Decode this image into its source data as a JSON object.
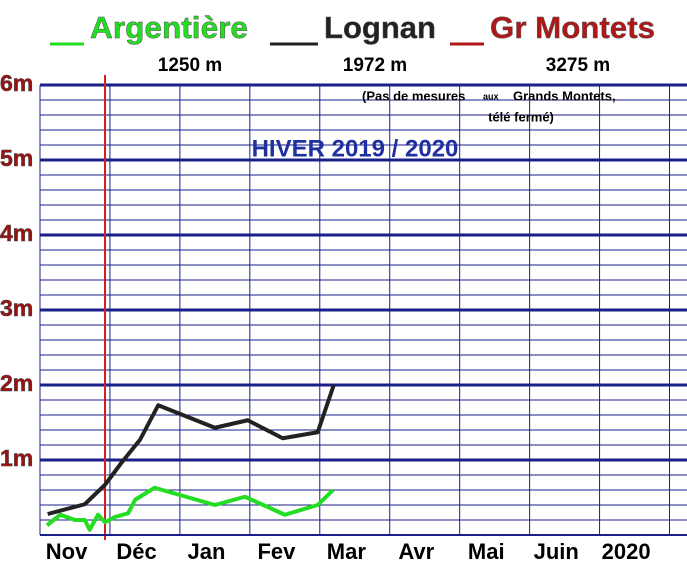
{
  "chart_data": {
    "type": "line",
    "title": "HIVER 2019 / 2020",
    "annotation": [
      "(Pas de mesures",
      "aux",
      "Grands Montets,",
      "télé fermé)"
    ],
    "categories": [
      "Nov",
      "Déc",
      "Jan",
      "Fev",
      "Mar",
      "Avr",
      "Mai",
      "Juin",
      "2020"
    ],
    "xlim": [
      0,
      9.25
    ],
    "xticks": [
      0,
      1,
      2,
      3,
      4,
      5,
      6,
      7,
      8,
      9
    ],
    "ylim": [
      0,
      6
    ],
    "yticks": [
      {
        "value": 1,
        "label": "1m"
      },
      {
        "value": 2,
        "label": "2m"
      },
      {
        "value": 3,
        "label": "3m"
      },
      {
        "value": 4,
        "label": "4m"
      },
      {
        "value": 5,
        "label": "5m"
      },
      {
        "value": 6,
        "label": "6m"
      }
    ],
    "minor_yticks": [
      0.2,
      0.4,
      0.6,
      0.8,
      1.2,
      1.4,
      1.6,
      1.8,
      2.2,
      2.4,
      2.6,
      2.8,
      3.2,
      3.4,
      3.6,
      3.8,
      4.2,
      4.4,
      4.6,
      4.8,
      5.2,
      5.4,
      5.6,
      5.8
    ],
    "grid": true,
    "series": [
      {
        "name": "Argentière",
        "altitude": "1250 m",
        "color": "#22dd22",
        "x": [
          0.1,
          0.29,
          0.5,
          0.64,
          0.71,
          0.83,
          0.93,
          1.07,
          1.26,
          1.36,
          1.64,
          1.86,
          2.5,
          2.93,
          3.5,
          3.97,
          4.19
        ],
        "values": [
          0.13,
          0.27,
          0.2,
          0.2,
          0.07,
          0.27,
          0.17,
          0.24,
          0.29,
          0.47,
          0.63,
          0.57,
          0.4,
          0.51,
          0.27,
          0.4,
          0.6
        ]
      },
      {
        "name": "Lognan",
        "altitude": "1972 m",
        "color": "#222222",
        "x": [
          0.11,
          0.64,
          0.93,
          1.17,
          1.43,
          1.69,
          2.5,
          2.97,
          3.47,
          3.97,
          4.2
        ],
        "values": [
          0.28,
          0.41,
          0.67,
          0.97,
          1.27,
          1.73,
          1.43,
          1.53,
          1.29,
          1.37,
          2.0
        ]
      },
      {
        "name": "Gr Montets",
        "altitude": "3275 m",
        "color": "#b01818",
        "x": [],
        "values": []
      }
    ]
  }
}
